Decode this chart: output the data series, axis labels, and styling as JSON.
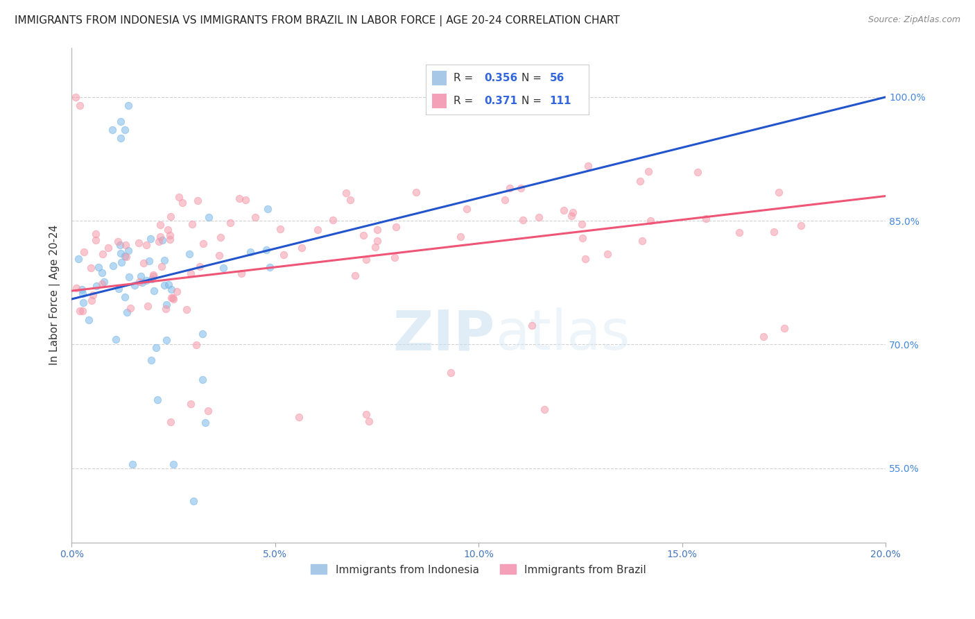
{
  "title": "IMMIGRANTS FROM INDONESIA VS IMMIGRANTS FROM BRAZIL IN LABOR FORCE | AGE 20-24 CORRELATION CHART",
  "source": "Source: ZipAtlas.com",
  "ylabel": "In Labor Force | Age 20-24",
  "watermark": "ZIPatlas",
  "legend_indonesia": "Immigrants from Indonesia",
  "legend_brazil": "Immigrants from Brazil",
  "R_indonesia": "0.356",
  "N_indonesia": "56",
  "R_brazil": "0.371",
  "N_brazil": "111",
  "indonesia_color": "#7ab8e8",
  "brazil_color": "#f599aa",
  "indonesia_line_color": "#2255cc",
  "brazil_line_color": "#ee5577",
  "grid_color": "#cccccc",
  "background_color": "#ffffff",
  "xlim": [
    0.0,
    0.2
  ],
  "ylim": [
    0.46,
    1.06
  ],
  "x_ticks": [
    0.0,
    0.05,
    0.1,
    0.15,
    0.2
  ],
  "y_ticks": [
    0.55,
    0.7,
    0.85,
    1.0
  ],
  "indonesia_line_x": [
    0.0,
    0.2
  ],
  "indonesia_line_y": [
    0.755,
    1.0
  ],
  "brazil_line_x": [
    0.0,
    0.2
  ],
  "brazil_line_y": [
    0.765,
    0.88
  ],
  "title_fontsize": 11,
  "source_fontsize": 9,
  "tick_fontsize": 10,
  "ylabel_fontsize": 11,
  "scatter_size": 55,
  "scatter_alpha": 0.55
}
